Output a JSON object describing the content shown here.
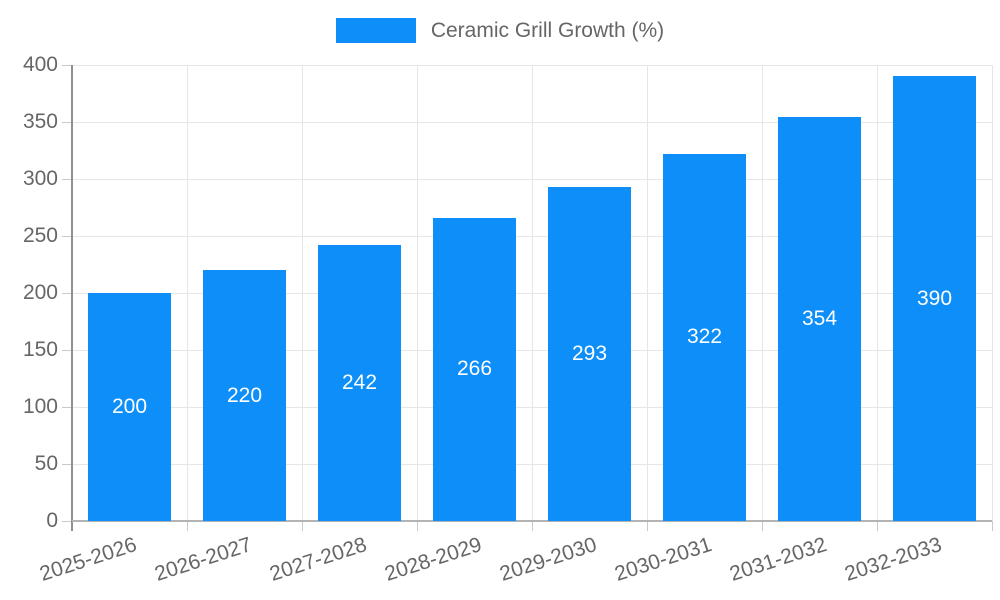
{
  "chart_data": {
    "type": "bar",
    "title": "",
    "legend": {
      "label": "Ceramic Grill Growth (%)",
      "position": "top-center"
    },
    "categories": [
      "2025-2026",
      "2026-2027",
      "2027-2028",
      "2028-2029",
      "2029-2030",
      "2030-2031",
      "2031-2032",
      "2032-2033"
    ],
    "series": [
      {
        "name": "Ceramic Grill Growth (%)",
        "values": [
          200,
          220,
          242,
          266,
          293,
          322,
          354,
          390
        ]
      }
    ],
    "show_value_labels": true,
    "xlabel": "",
    "ylabel": "",
    "ylim": [
      0,
      400
    ],
    "y_ticks": [
      0,
      50,
      100,
      150,
      200,
      250,
      300,
      350,
      400
    ],
    "grid": true,
    "x_label_rotation_deg": -18,
    "colors": {
      "bar": "#0d8ef8",
      "value_label": "#ffffff",
      "gridline": "#e6e6e6",
      "y_axis_line": "#909090",
      "x_axis_line": "#b3b3b3",
      "tick_mark": "#c9c9c9",
      "tick_label": "#666666",
      "legend_text": "#666666",
      "background": "#ffffff"
    }
  }
}
